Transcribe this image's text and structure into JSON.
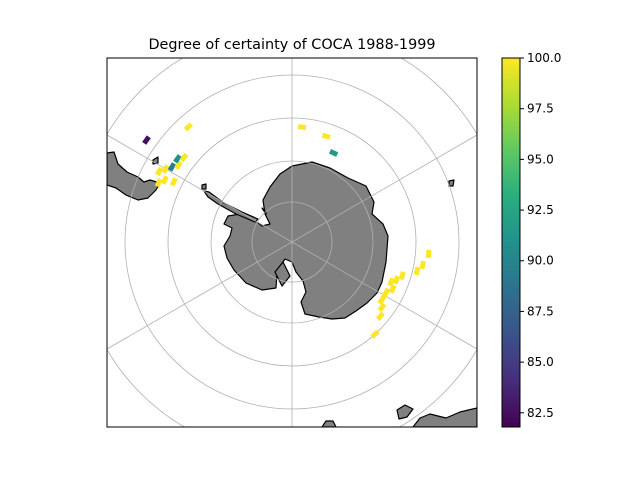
{
  "chart_data": {
    "type": "heatmap",
    "title": "Degree of certainty of COCA 1988-1999",
    "projection": "south polar stereographic",
    "colormap": "viridis",
    "colorbar": {
      "min": 81.8,
      "max": 100.0,
      "ticks": [
        "82.5",
        "85.0",
        "87.5",
        "90.0",
        "92.5",
        "95.0",
        "97.5",
        "100.0"
      ],
      "tick_values": [
        82.5,
        85.0,
        87.5,
        90.0,
        92.5,
        95.0,
        97.5,
        100.0
      ]
    },
    "grid": true,
    "land_color": "#808080",
    "points": [
      {
        "lon": -55,
        "lat": -48,
        "value": 82.5
      },
      {
        "lon": -42,
        "lat": -53,
        "value": 100.0
      },
      {
        "lon": -62,
        "lat": -54,
        "value": 100.0
      },
      {
        "lon": -60,
        "lat": -55,
        "value": 100.0
      },
      {
        "lon": -58,
        "lat": -56,
        "value": 89.5
      },
      {
        "lon": -56,
        "lat": -57,
        "value": 100.0
      },
      {
        "lon": -54,
        "lat": -56,
        "value": 91.0
      },
      {
        "lon": -52,
        "lat": -57,
        "value": 100.0
      },
      {
        "lon": -64,
        "lat": -56,
        "value": 100.0
      },
      {
        "lon": -66,
        "lat": -55,
        "value": 100.0
      },
      {
        "lon": -63,
        "lat": -58,
        "value": 100.0
      },
      {
        "lon": 5,
        "lat": -62,
        "value": 100.0
      },
      {
        "lon": 18,
        "lat": -63,
        "value": 100.0
      },
      {
        "lon": 25,
        "lat": -66,
        "value": 91.5
      },
      {
        "lon": 95,
        "lat": -57,
        "value": 100.0
      },
      {
        "lon": 100,
        "lat": -58,
        "value": 100.0
      },
      {
        "lon": 103,
        "lat": -59,
        "value": 100.0
      },
      {
        "lon": 107,
        "lat": -62,
        "value": 100.0
      },
      {
        "lon": 110,
        "lat": -63,
        "value": 100.0
      },
      {
        "lon": 112,
        "lat": -64,
        "value": 100.0
      },
      {
        "lon": 115,
        "lat": -63,
        "value": 100.0
      },
      {
        "lon": 118,
        "lat": -64,
        "value": 100.0
      },
      {
        "lon": 120,
        "lat": -64,
        "value": 100.0
      },
      {
        "lon": 123,
        "lat": -64,
        "value": 100.0
      },
      {
        "lon": 126,
        "lat": -63,
        "value": 100.0
      },
      {
        "lon": 130,
        "lat": -62,
        "value": 100.0
      },
      {
        "lon": 138,
        "lat": -60,
        "value": 100.0
      }
    ]
  }
}
